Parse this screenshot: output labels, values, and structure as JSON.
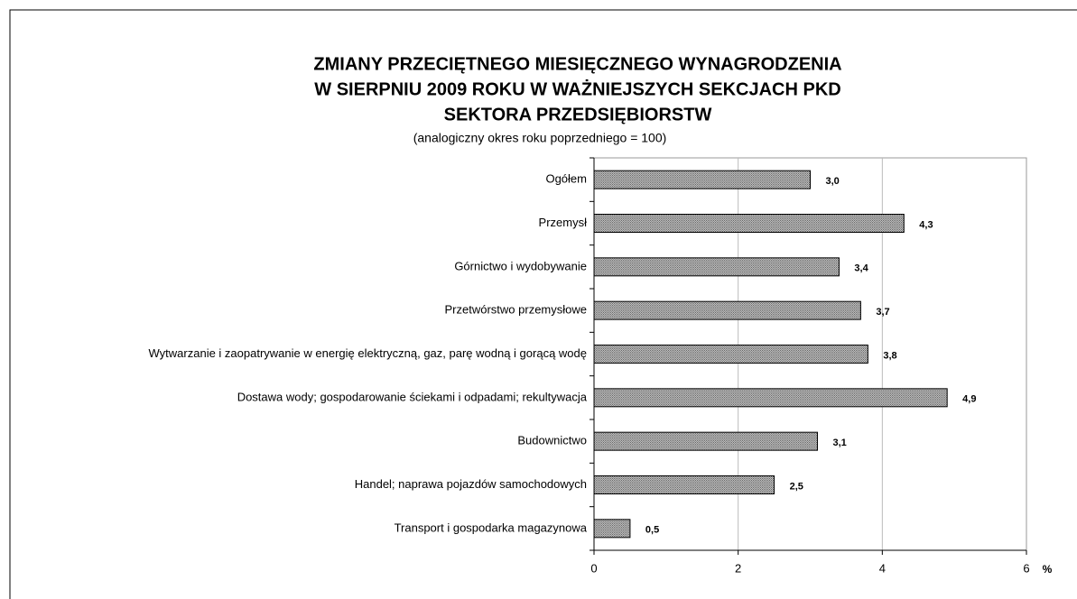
{
  "chart_data": {
    "type": "barh",
    "title": [
      "ZMIANY PRZECIĘTNEGO MIESIĘCZNEGO WYNAGRODZENIA",
      "W SIERPNIU 2009 ROKU  W WAŻNIEJSZYCH SEKCJACH PKD",
      "SEKTORA PRZEDSIĘBIORSTW"
    ],
    "subtitle": "(analogiczny okres roku poprzedniego = 100)",
    "xlabel": "%",
    "categories": [
      "Ogółem",
      "Przemysł",
      "Górnictwo i wydobywanie",
      "Przetwórstwo przemysłowe",
      "Wytwarzanie i zaopatrywanie w energię elektryczną, gaz, parę wodną i gorącą wodę",
      "Dostawa wody; gospodarowanie ściekami i odpadami; rekultywacja",
      "Budownictwo",
      "Handel; naprawa pojazdów samochodowych",
      "Transport i gospodarka magazynowa"
    ],
    "values": [
      3.0,
      4.3,
      3.4,
      3.7,
      3.8,
      4.9,
      3.1,
      2.5,
      0.5
    ],
    "value_labels": [
      "3,0",
      "4,3",
      "3,4",
      "3,7",
      "3,8",
      "4,9",
      "3,1",
      "2,5",
      "0,5"
    ],
    "color": "#a8a8a8",
    "xlim": [
      0,
      6
    ],
    "xticks": [
      0,
      2,
      4,
      6
    ],
    "grid": true
  }
}
